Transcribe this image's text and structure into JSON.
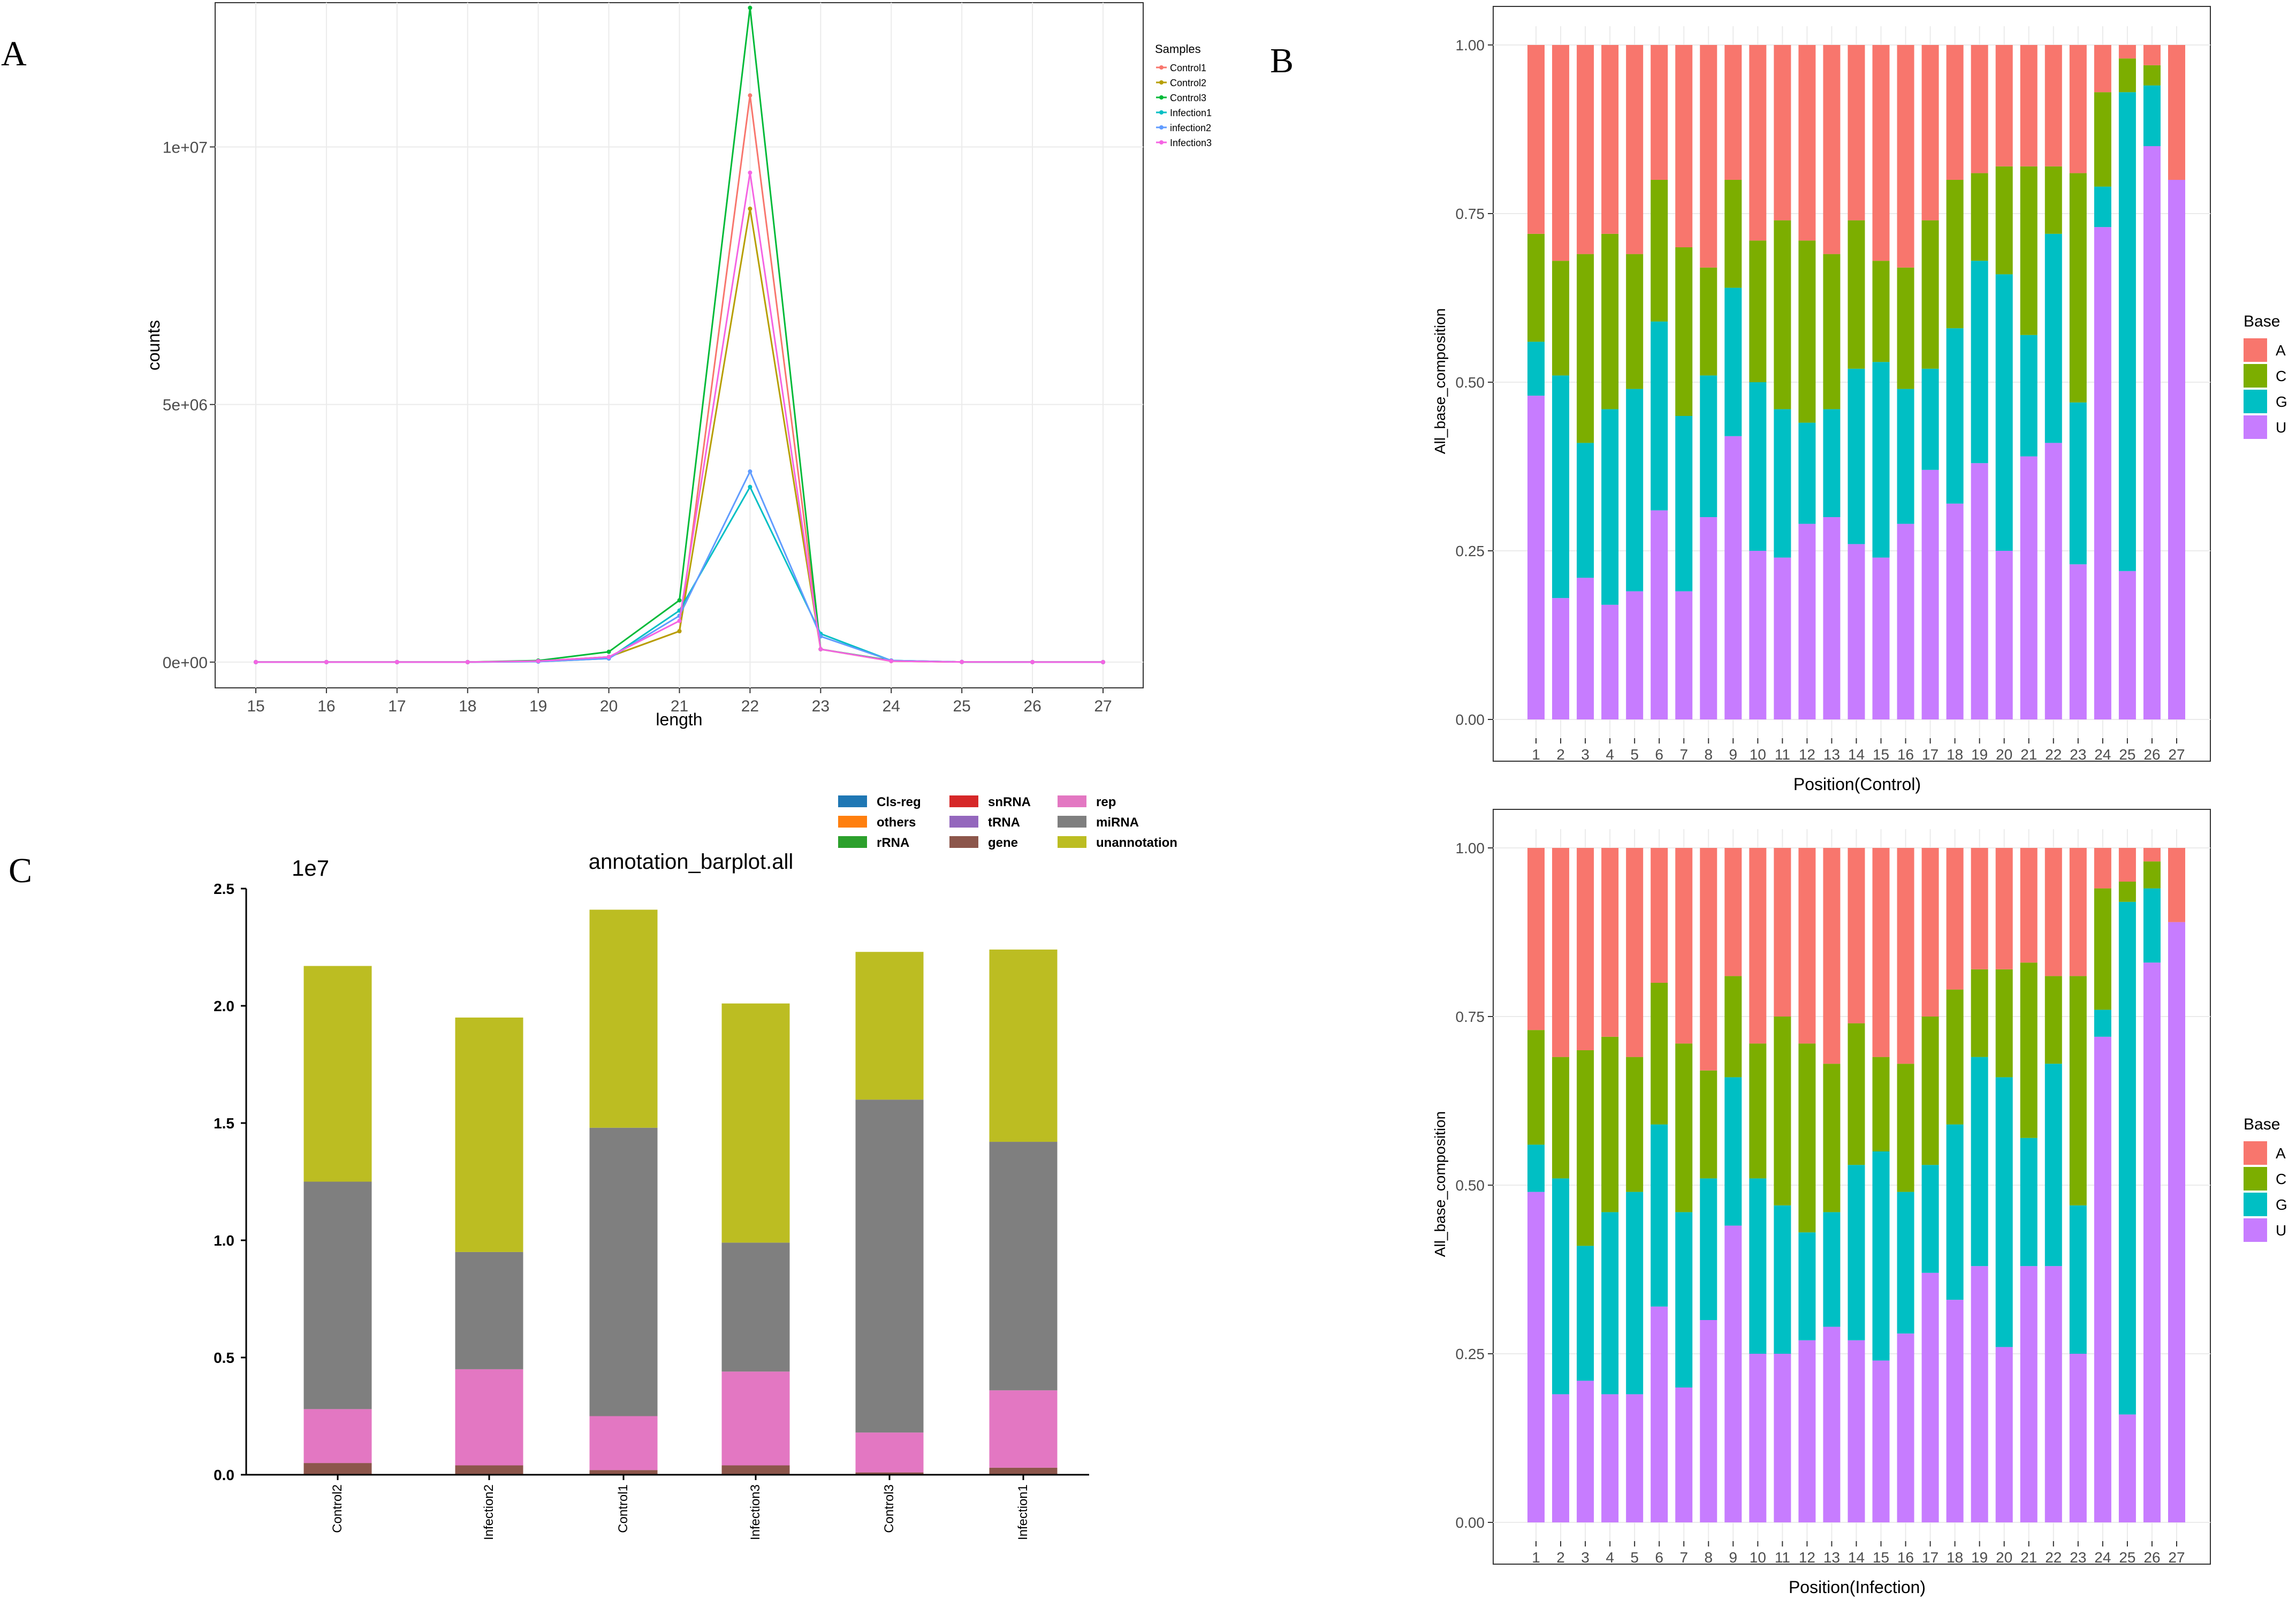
{
  "panels": {
    "A": "A",
    "B": "B",
    "C": "C"
  },
  "colors": {
    "Control1": "#F8766D",
    "Control2": "#B79F00",
    "Control3": "#00BA38",
    "Infection1": "#00BFC4",
    "infection2": "#619CFF",
    "Infection3": "#F564E3",
    "base_A": "#F8766D",
    "base_C": "#7CAE00",
    "base_G": "#00BFC4",
    "base_U": "#C77CFF",
    "Cls-reg": "#1F77B4",
    "others": "#FF7F0E",
    "rRNA": "#2CA02C",
    "snRNA": "#D62728",
    "tRNA": "#9467BD",
    "gene": "#8C564B",
    "rep": "#E377C2",
    "miRNA": "#7F7F7F",
    "unannotation": "#BCBD22"
  },
  "chart_data": [
    {
      "id": "A",
      "type": "line",
      "title": "",
      "xlabel": "length",
      "ylabel": "counts",
      "legend_title": "Samples",
      "legend_position": "top-right",
      "x": [
        15,
        16,
        17,
        18,
        19,
        20,
        21,
        22,
        23,
        24,
        25,
        26,
        27
      ],
      "ylim": [
        -500000,
        12800000
      ],
      "yticks": [
        0,
        5000000,
        10000000
      ],
      "ytick_labels": [
        "0e+00",
        "5e+06",
        "1e+07"
      ],
      "series": [
        {
          "name": "Control1",
          "color": "#F8766D",
          "values": [
            0,
            0,
            0,
            0,
            20000,
            100000,
            600000,
            11000000,
            250000,
            20000,
            2000,
            500,
            0
          ]
        },
        {
          "name": "Control2",
          "color": "#B79F00",
          "values": [
            0,
            0,
            0,
            0,
            20000,
            100000,
            600000,
            8800000,
            250000,
            20000,
            2000,
            500,
            0
          ]
        },
        {
          "name": "Control3",
          "color": "#00BA38",
          "values": [
            0,
            0,
            0,
            0,
            30000,
            200000,
            1200000,
            12700000,
            250000,
            30000,
            2000,
            500,
            0
          ]
        },
        {
          "name": "Infection1",
          "color": "#00BFC4",
          "values": [
            0,
            0,
            0,
            0,
            10000,
            70000,
            1000000,
            3400000,
            550000,
            30000,
            2000,
            500,
            0
          ]
        },
        {
          "name": "infection2",
          "color": "#619CFF",
          "values": [
            0,
            0,
            0,
            0,
            10000,
            70000,
            900000,
            3700000,
            500000,
            30000,
            2000,
            500,
            0
          ]
        },
        {
          "name": "Infection3",
          "color": "#F564E3",
          "values": [
            0,
            0,
            0,
            0,
            20000,
            100000,
            800000,
            9500000,
            250000,
            20000,
            2000,
            500,
            0
          ]
        }
      ]
    },
    {
      "id": "B-control",
      "type": "bar",
      "stacked": true,
      "xlabel": "Position(Control)",
      "ylabel": "All_base_composition",
      "legend_title": "Base",
      "legend_position": "right",
      "categories": [
        "1",
        "2",
        "3",
        "4",
        "5",
        "6",
        "7",
        "8",
        "9",
        "10",
        "11",
        "12",
        "13",
        "14",
        "15",
        "16",
        "17",
        "18",
        "19",
        "20",
        "21",
        "22",
        "23",
        "24",
        "25",
        "26",
        "27"
      ],
      "ylim": [
        0,
        1
      ],
      "yticks": [
        0,
        0.25,
        0.5,
        0.75,
        1
      ],
      "ytick_labels": [
        "0.00",
        "0.25",
        "0.50",
        "0.75",
        "1.00"
      ],
      "series": [
        {
          "name": "U",
          "color": "#C77CFF",
          "values": [
            0.48,
            0.18,
            0.21,
            0.17,
            0.19,
            0.31,
            0.19,
            0.3,
            0.42,
            0.25,
            0.24,
            0.29,
            0.3,
            0.26,
            0.24,
            0.29,
            0.37,
            0.32,
            0.38,
            0.25,
            0.39,
            0.41,
            0.23,
            0.73,
            0.22,
            0.85,
            0.8
          ]
        },
        {
          "name": "G",
          "color": "#00BFC4",
          "values": [
            0.08,
            0.33,
            0.2,
            0.29,
            0.3,
            0.28,
            0.26,
            0.21,
            0.22,
            0.25,
            0.22,
            0.15,
            0.16,
            0.26,
            0.29,
            0.2,
            0.15,
            0.26,
            0.3,
            0.41,
            0.18,
            0.31,
            0.24,
            0.06,
            0.71,
            0.09,
            0.0
          ]
        },
        {
          "name": "C",
          "color": "#7CAE00",
          "values": [
            0.16,
            0.17,
            0.28,
            0.26,
            0.2,
            0.21,
            0.25,
            0.16,
            0.16,
            0.21,
            0.28,
            0.27,
            0.23,
            0.22,
            0.15,
            0.18,
            0.22,
            0.22,
            0.13,
            0.16,
            0.25,
            0.1,
            0.34,
            0.14,
            0.05,
            0.03,
            0.0
          ]
        },
        {
          "name": "A",
          "color": "#F8766D",
          "values": [
            0.28,
            0.32,
            0.31,
            0.28,
            0.31,
            0.2,
            0.3,
            0.33,
            0.2,
            0.29,
            0.26,
            0.29,
            0.31,
            0.26,
            0.32,
            0.33,
            0.26,
            0.2,
            0.19,
            0.18,
            0.18,
            0.18,
            0.19,
            0.07,
            0.02,
            0.03,
            0.2
          ]
        }
      ]
    },
    {
      "id": "B-infection",
      "type": "bar",
      "stacked": true,
      "xlabel": "Position(Infection)",
      "ylabel": "All_base_composition",
      "legend_title": "Base",
      "legend_position": "right",
      "categories": [
        "1",
        "2",
        "3",
        "4",
        "5",
        "6",
        "7",
        "8",
        "9",
        "10",
        "11",
        "12",
        "13",
        "14",
        "15",
        "16",
        "17",
        "18",
        "19",
        "20",
        "21",
        "22",
        "23",
        "24",
        "25",
        "26",
        "27"
      ],
      "ylim": [
        0,
        1
      ],
      "yticks": [
        0,
        0.25,
        0.5,
        0.75,
        1
      ],
      "ytick_labels": [
        "0.00",
        "0.25",
        "0.50",
        "0.75",
        "1.00"
      ],
      "series": [
        {
          "name": "U",
          "color": "#C77CFF",
          "values": [
            0.49,
            0.19,
            0.21,
            0.19,
            0.19,
            0.32,
            0.2,
            0.3,
            0.44,
            0.25,
            0.25,
            0.27,
            0.29,
            0.27,
            0.24,
            0.28,
            0.37,
            0.33,
            0.38,
            0.26,
            0.38,
            0.38,
            0.25,
            0.72,
            0.16,
            0.83,
            0.89
          ]
        },
        {
          "name": "G",
          "color": "#00BFC4",
          "values": [
            0.07,
            0.32,
            0.2,
            0.27,
            0.3,
            0.27,
            0.26,
            0.21,
            0.22,
            0.26,
            0.22,
            0.16,
            0.17,
            0.26,
            0.31,
            0.21,
            0.16,
            0.26,
            0.31,
            0.4,
            0.19,
            0.3,
            0.22,
            0.04,
            0.76,
            0.11,
            0.0
          ]
        },
        {
          "name": "C",
          "color": "#7CAE00",
          "values": [
            0.17,
            0.18,
            0.29,
            0.26,
            0.2,
            0.21,
            0.25,
            0.16,
            0.15,
            0.2,
            0.28,
            0.28,
            0.22,
            0.21,
            0.14,
            0.19,
            0.22,
            0.2,
            0.13,
            0.16,
            0.26,
            0.13,
            0.34,
            0.18,
            0.03,
            0.04,
            0.0
          ]
        },
        {
          "name": "A",
          "color": "#F8766D",
          "values": [
            0.27,
            0.31,
            0.3,
            0.28,
            0.31,
            0.2,
            0.29,
            0.33,
            0.19,
            0.29,
            0.25,
            0.29,
            0.32,
            0.26,
            0.31,
            0.32,
            0.25,
            0.21,
            0.18,
            0.18,
            0.17,
            0.19,
            0.19,
            0.06,
            0.05,
            0.02,
            0.11
          ]
        }
      ]
    },
    {
      "id": "C",
      "type": "bar",
      "stacked": true,
      "title": "annotation_barplot.all",
      "exponent_label": "1e7",
      "xlabel": "",
      "ylabel": "",
      "legend_position": "top-right",
      "categories": [
        "Control2",
        "Infection2",
        "Control1",
        "Infection3",
        "Control3",
        "Infection1"
      ],
      "ylim": [
        0,
        25000000
      ],
      "yticks": [
        0,
        5000000,
        10000000,
        15000000,
        20000000,
        25000000
      ],
      "ytick_labels": [
        "0.0",
        "0.5",
        "1.0",
        "1.5",
        "2.0",
        "2.5"
      ],
      "legend_order": [
        "Cls-reg",
        "others",
        "rRNA",
        "snRNA",
        "tRNA",
        "gene",
        "rep",
        "miRNA",
        "unannotation"
      ],
      "series": [
        {
          "name": "Cls-reg",
          "color": "#1F77B4",
          "values": [
            0,
            0,
            0,
            0,
            0,
            0
          ]
        },
        {
          "name": "others",
          "color": "#FF7F0E",
          "values": [
            0,
            0,
            0,
            0,
            0,
            0
          ]
        },
        {
          "name": "rRNA",
          "color": "#2CA02C",
          "values": [
            0,
            0,
            0,
            0,
            0,
            0
          ]
        },
        {
          "name": "snRNA",
          "color": "#D62728",
          "values": [
            0,
            0,
            0,
            0,
            0,
            0
          ]
        },
        {
          "name": "tRNA",
          "color": "#9467BD",
          "values": [
            0,
            0,
            0,
            0,
            0,
            0
          ]
        },
        {
          "name": "gene",
          "color": "#8C564B",
          "values": [
            500000,
            400000,
            200000,
            400000,
            100000,
            300000
          ]
        },
        {
          "name": "rep",
          "color": "#E377C2",
          "values": [
            2300000,
            4100000,
            2300000,
            4000000,
            1700000,
            3300000
          ]
        },
        {
          "name": "miRNA",
          "color": "#7F7F7F",
          "values": [
            9700000,
            5000000,
            12300000,
            5500000,
            14200000,
            10600000
          ]
        },
        {
          "name": "unannotation",
          "color": "#BCBD22",
          "values": [
            9200000,
            10000000,
            9300000,
            10200000,
            6300000,
            8200000
          ]
        }
      ]
    }
  ]
}
